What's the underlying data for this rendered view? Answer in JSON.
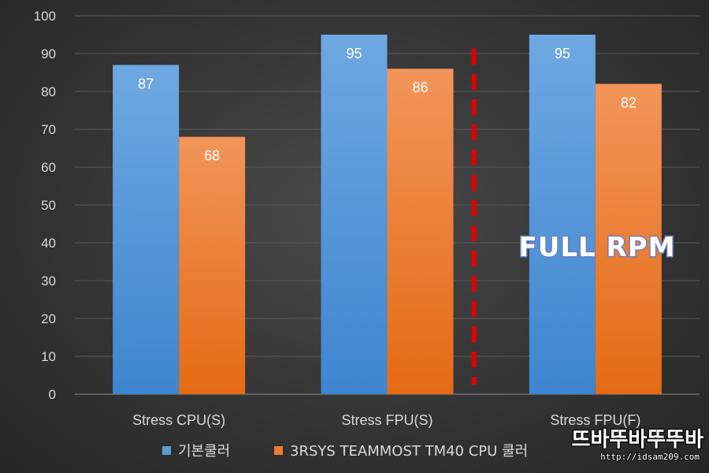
{
  "chart_data": {
    "type": "bar",
    "categories": [
      "Stress CPU(S)",
      "Stress FPU(S)",
      "Stress FPU(F)"
    ],
    "series": [
      {
        "name": "기본쿨러",
        "values": [
          87,
          95,
          95
        ],
        "color": "#5b9bd5"
      },
      {
        "name": "3RSYS TEAMMOST TM40 CPU 쿨러",
        "values": [
          68,
          86,
          82
        ],
        "color": "#ed7d31"
      }
    ],
    "title": "",
    "xlabel": "",
    "ylabel": "",
    "ylim": [
      0,
      100
    ],
    "yticks": [
      0,
      10,
      20,
      30,
      40,
      50,
      60,
      70,
      80,
      90,
      100
    ],
    "grid": true,
    "legend_position": "bottom",
    "data_labels": true,
    "annotations": [
      {
        "text": "FULL RPM",
        "color": "#ffffff"
      }
    ],
    "divider": {
      "style": "dashed",
      "color": "#e00000",
      "between_categories": [
        1,
        2
      ]
    }
  },
  "watermark": {
    "logo_text": "뜨바뚜바뚜뚜바",
    "url": "http://idsam209.com"
  }
}
